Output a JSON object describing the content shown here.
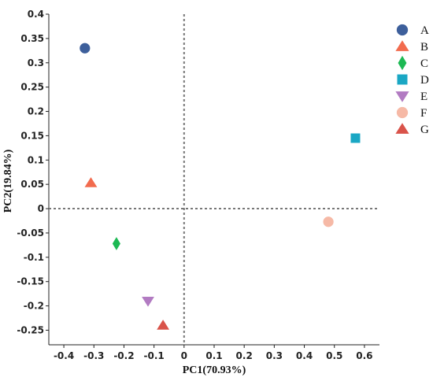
{
  "chart_data": {
    "type": "scatter",
    "xlabel": "PC1(70.93%)",
    "ylabel": "PC2(19.84%)",
    "xlim": [
      -0.45,
      0.65
    ],
    "ylim": [
      -0.28,
      0.4
    ],
    "xticks": [
      "-0.4",
      "-0.3",
      "-0.2",
      "-0.1",
      "0",
      "0.1",
      "0.2",
      "0.3",
      "0.4",
      "0.5",
      "0.6"
    ],
    "yticks": [
      "0.4",
      "0.35",
      "0.3",
      "0.25",
      "0.2",
      "0.15",
      "0.1",
      "0.05",
      "0",
      "-0.05",
      "-0.1",
      "-0.15",
      "-0.2",
      "-0.25"
    ],
    "zero_lines": "dashed",
    "legend_position": "right",
    "points": [
      {
        "label": "A",
        "x": -0.33,
        "y": 0.33,
        "marker": "circle",
        "color": "#3D5F9B"
      },
      {
        "label": "B",
        "x": -0.31,
        "y": 0.053,
        "marker": "triangle-up",
        "color": "#F26B4E"
      },
      {
        "label": "C",
        "x": -0.225,
        "y": -0.072,
        "marker": "diamond",
        "color": "#1DB954"
      },
      {
        "label": "D",
        "x": 0.57,
        "y": 0.145,
        "marker": "square",
        "color": "#1AA7C4"
      },
      {
        "label": "E",
        "x": -0.12,
        "y": -0.19,
        "marker": "triangle-down",
        "color": "#B27BC2"
      },
      {
        "label": "F",
        "x": 0.48,
        "y": -0.027,
        "marker": "circle",
        "color": "#F6B9A6"
      },
      {
        "label": "G",
        "x": -0.07,
        "y": -0.24,
        "marker": "triangle-up",
        "color": "#D9534A"
      }
    ]
  }
}
